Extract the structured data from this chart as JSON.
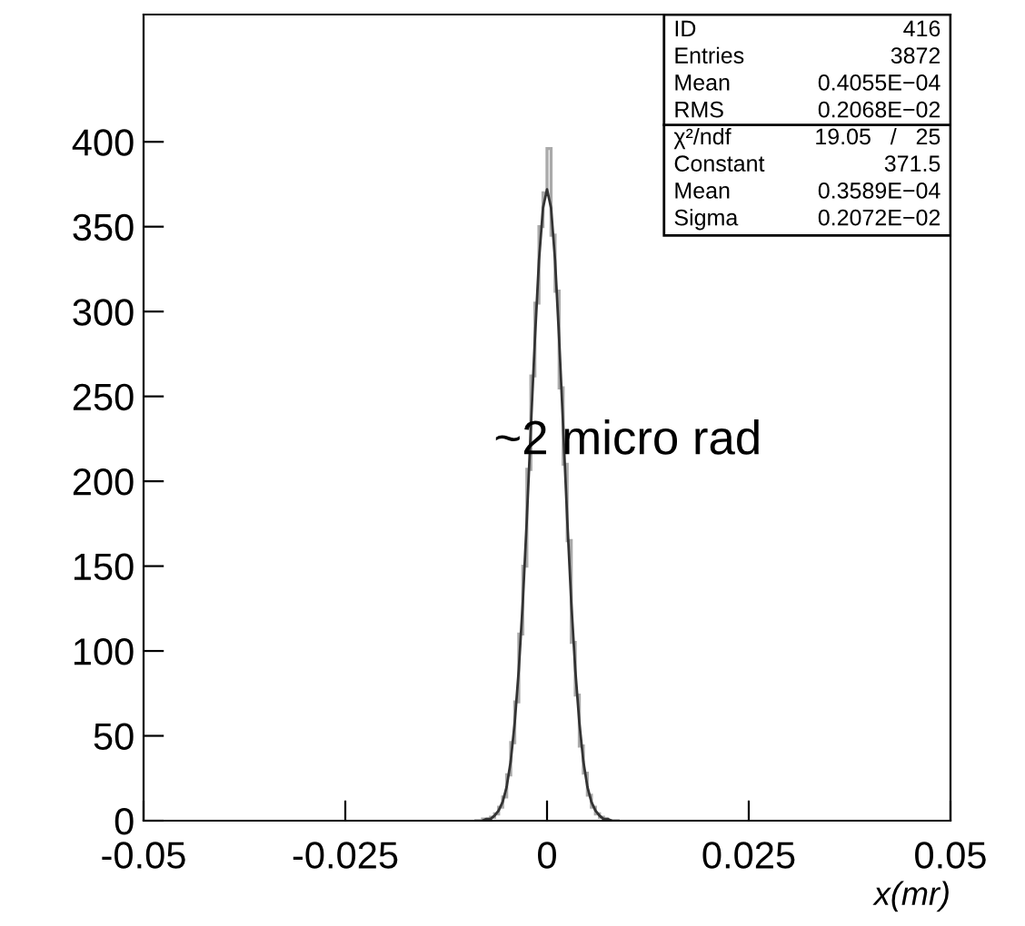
{
  "chart_data": {
    "type": "histogram",
    "xlabel": "x(mr)",
    "xlim": [
      -0.05,
      0.05
    ],
    "xticks": [
      -0.05,
      -0.025,
      0,
      0.025,
      0.05
    ],
    "ylim": [
      0,
      475
    ],
    "yticks": [
      0,
      50,
      100,
      150,
      200,
      250,
      300,
      350,
      400
    ],
    "grid": false,
    "legend": false,
    "series": [
      {
        "color": "#aaaaaa",
        "bins": [
          -0.009,
          -0.0085,
          -0.008,
          -0.0075,
          -0.007,
          -0.0065,
          -0.006,
          -0.0055,
          -0.005,
          -0.0045,
          -0.004,
          -0.0035,
          -0.003,
          -0.0025,
          -0.002,
          -0.0015,
          -0.001,
          -0.0005,
          0,
          0.0005,
          0.001,
          0.0015,
          0.002,
          0.0025,
          0.003,
          0.0035,
          0.004,
          0.0045,
          0.005,
          0.0055,
          0.006,
          0.0065,
          0.007,
          0.0075,
          0.008,
          0.0085,
          0.009
        ],
        "values": [
          0,
          0,
          1,
          1,
          2,
          4,
          8,
          14,
          27,
          46,
          70,
          110,
          150,
          207,
          262,
          305,
          350,
          370,
          396,
          345,
          312,
          255,
          210,
          165,
          105,
          74,
          44,
          28,
          15,
          8,
          4,
          2,
          1,
          0,
          0,
          0
        ]
      },
      {
        "type": "line",
        "color": "#333333",
        "x": [
          -0.008,
          -0.0075,
          -0.007,
          -0.0065,
          -0.006,
          -0.0055,
          -0.005,
          -0.0045,
          -0.004,
          -0.0035,
          -0.003,
          -0.0025,
          -0.002,
          -0.0015,
          -0.001,
          -0.0005,
          0,
          0.0005,
          0.001,
          0.0015,
          0.002,
          0.0025,
          0.003,
          0.0035,
          0.004,
          0.0045,
          0.005,
          0.0055,
          0.006,
          0.0065,
          0.007,
          0.0075,
          0.008
        ],
        "values": [
          0,
          1,
          1,
          3,
          6,
          11,
          20,
          35,
          58,
          89,
          129,
          178,
          232,
          284,
          330,
          361,
          372,
          361,
          330,
          284,
          232,
          178,
          129,
          89,
          58,
          35,
          20,
          11,
          6,
          3,
          1,
          1,
          0
        ]
      }
    ],
    "annotations": [
      "ID",
      "416",
      "Entries",
      "3872",
      "Mean",
      "0.4055E−04",
      "RMS",
      "0.2068E−02",
      "χ²/ndf",
      "19.05   /   25",
      "Constant",
      "371.5",
      "Mean",
      "0.3589E−04",
      "Sigma",
      "0.2072E−02",
      "~2 micro rad"
    ]
  }
}
